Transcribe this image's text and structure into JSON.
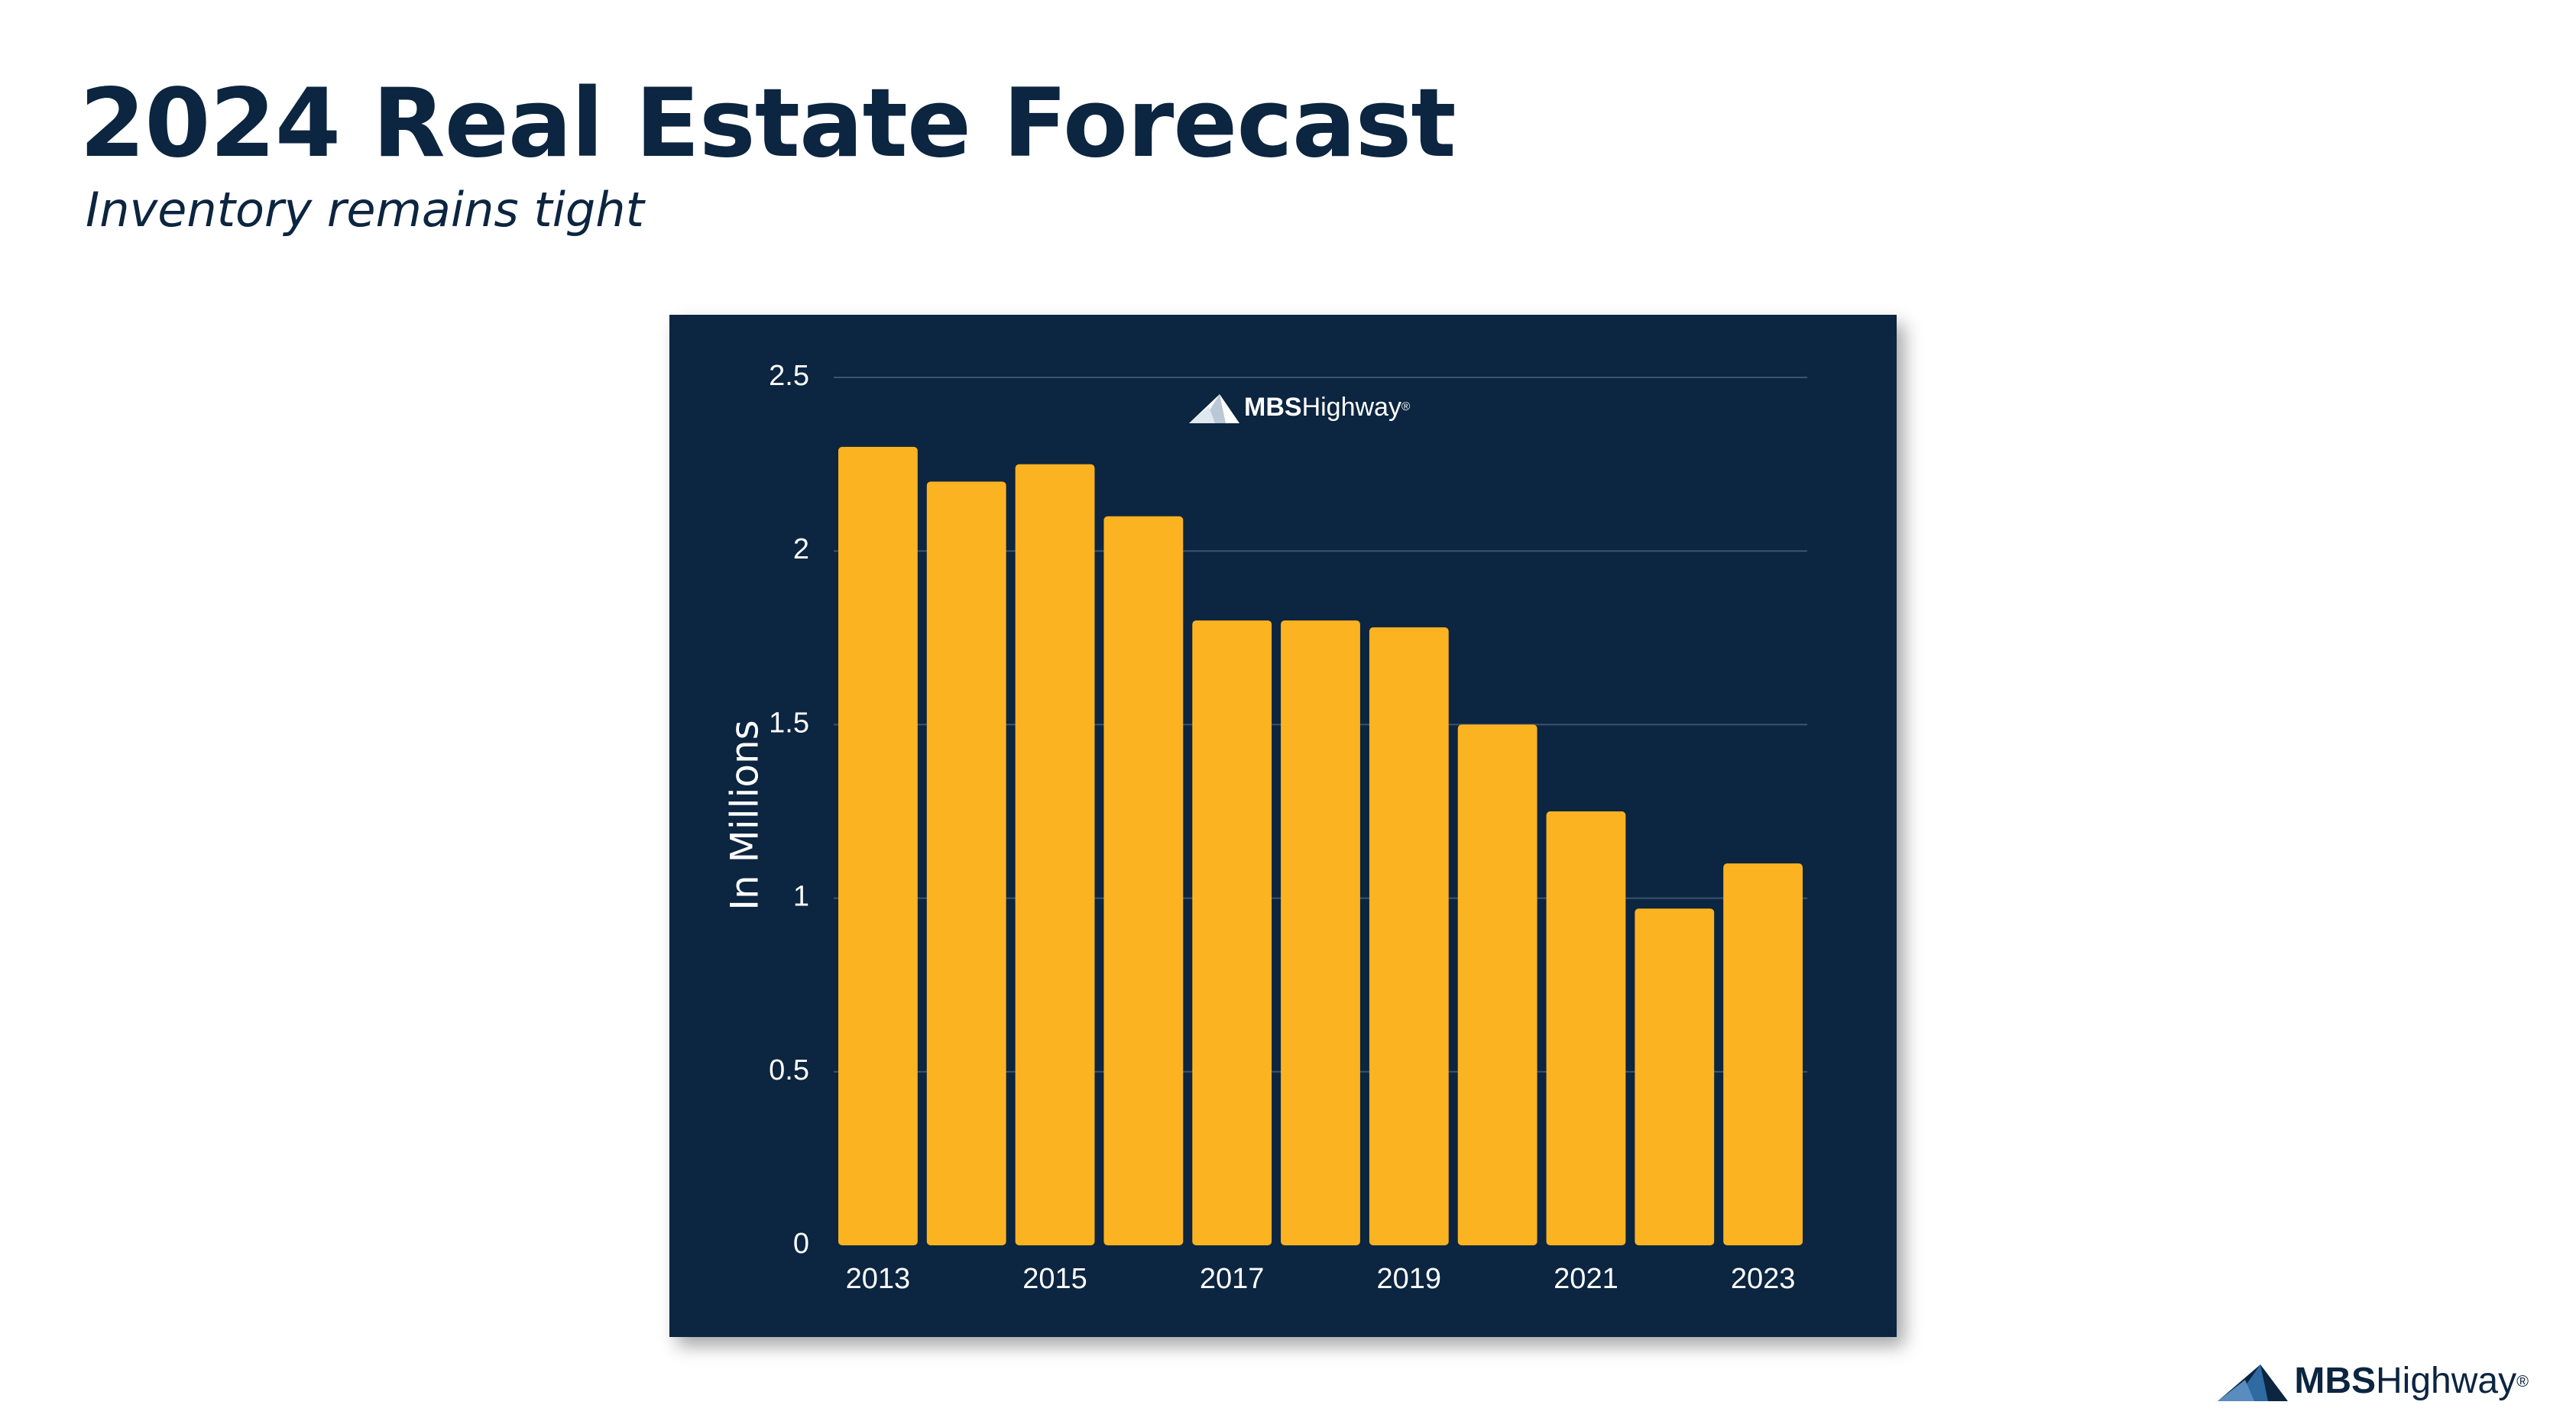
{
  "slide": {
    "title": "2024 Real Estate Forecast",
    "subtitle": "Inventory remains tight",
    "brand": {
      "strong": "MBS",
      "light": " Highway",
      "mark": "®"
    }
  },
  "colors": {
    "title": "#0c2540",
    "panel": "#0c2540",
    "bar": "#fbb321",
    "grid": "#3a5470",
    "text": "#ffffff"
  },
  "chart_data": {
    "type": "bar",
    "categories": [
      "2013",
      "2014",
      "2015",
      "2016",
      "2017",
      "2018",
      "2019",
      "2020",
      "2021",
      "2022",
      "2023"
    ],
    "tick_labels_x": [
      "2013",
      "",
      "2015",
      "",
      "2017",
      "",
      "2019",
      "",
      "2021",
      "",
      "2023"
    ],
    "values": [
      2.3,
      2.2,
      2.25,
      2.1,
      1.8,
      1.8,
      1.78,
      1.5,
      1.25,
      0.97,
      1.1
    ],
    "ylabel": "In Millions",
    "ylim": [
      0,
      2.5
    ],
    "yticks": [
      0,
      0.5,
      1,
      1.5,
      2,
      2.5
    ],
    "ytick_labels": [
      "0",
      "0.5",
      "1",
      "1.5",
      "2",
      "2.5"
    ],
    "grid": true,
    "legend": "none"
  }
}
